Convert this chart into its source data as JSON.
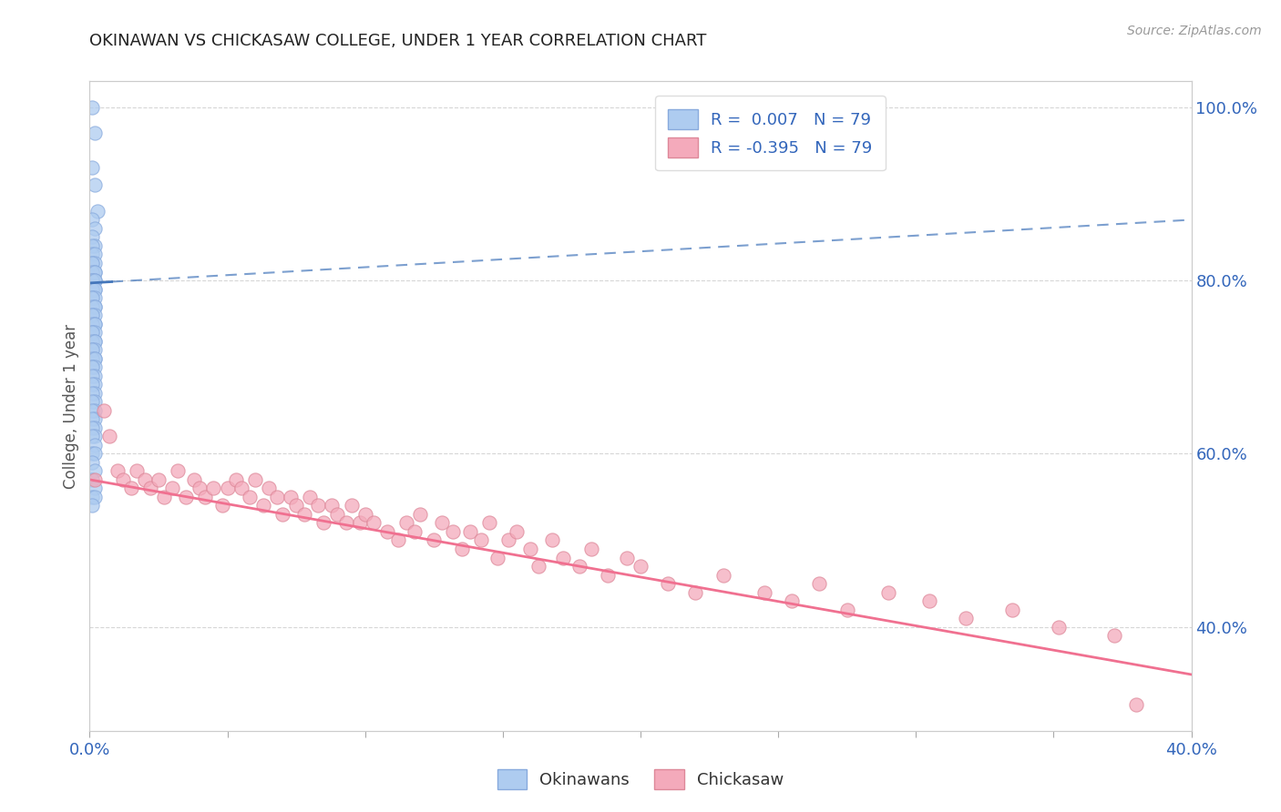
{
  "title": "OKINAWAN VS CHICKASAW COLLEGE, UNDER 1 YEAR CORRELATION CHART",
  "source_text": "Source: ZipAtlas.com",
  "ylabel": "College, Under 1 year",
  "x_min": 0.0,
  "x_max": 0.4,
  "y_min": 0.28,
  "y_max": 1.03,
  "right_y_ticks": [
    0.4,
    0.6,
    0.8,
    1.0
  ],
  "right_y_labels": [
    "40.0%",
    "60.0%",
    "80.0%",
    "100.0%"
  ],
  "x_ticks": [
    0.0,
    0.05,
    0.1,
    0.15,
    0.2,
    0.25,
    0.3,
    0.35,
    0.4
  ],
  "okinawan_R": 0.007,
  "okinawan_N": 79,
  "chickasaw_R": -0.395,
  "chickasaw_N": 79,
  "okinawan_color": "#aeccf0",
  "chickasaw_color": "#f4aabb",
  "okinawan_line_color": "#4477bb",
  "chickasaw_line_color": "#f07090",
  "legend_label_okinawan": "Okinawans",
  "legend_label_chickasaw": "Chickasaw",
  "title_color": "#222222",
  "source_color": "#999999",
  "axis_color": "#3366bb",
  "background_color": "#ffffff",
  "okinawan_x": [
    0.001,
    0.002,
    0.001,
    0.002,
    0.003,
    0.001,
    0.002,
    0.001,
    0.002,
    0.001,
    0.001,
    0.002,
    0.001,
    0.002,
    0.001,
    0.002,
    0.001,
    0.002,
    0.001,
    0.002,
    0.001,
    0.002,
    0.001,
    0.002,
    0.001,
    0.002,
    0.001,
    0.002,
    0.001,
    0.002,
    0.001,
    0.002,
    0.001,
    0.002,
    0.001,
    0.002,
    0.001,
    0.002,
    0.001,
    0.002,
    0.001,
    0.002,
    0.001,
    0.002,
    0.001,
    0.002,
    0.001,
    0.002,
    0.001,
    0.002,
    0.001,
    0.002,
    0.001,
    0.002,
    0.001,
    0.002,
    0.001,
    0.002,
    0.001,
    0.002,
    0.001,
    0.002,
    0.001,
    0.002,
    0.001,
    0.002,
    0.001,
    0.002,
    0.001,
    0.002,
    0.001,
    0.002,
    0.001,
    0.002,
    0.001,
    0.002,
    0.001,
    0.002,
    0.001
  ],
  "okinawan_y": [
    1.0,
    0.97,
    0.93,
    0.91,
    0.88,
    0.87,
    0.86,
    0.85,
    0.84,
    0.84,
    0.83,
    0.83,
    0.82,
    0.82,
    0.82,
    0.81,
    0.81,
    0.81,
    0.8,
    0.8,
    0.8,
    0.8,
    0.79,
    0.79,
    0.79,
    0.79,
    0.78,
    0.78,
    0.78,
    0.77,
    0.77,
    0.77,
    0.76,
    0.76,
    0.76,
    0.75,
    0.75,
    0.75,
    0.74,
    0.74,
    0.74,
    0.73,
    0.73,
    0.73,
    0.72,
    0.72,
    0.72,
    0.71,
    0.71,
    0.71,
    0.7,
    0.7,
    0.7,
    0.69,
    0.69,
    0.68,
    0.68,
    0.67,
    0.67,
    0.66,
    0.66,
    0.65,
    0.65,
    0.64,
    0.64,
    0.63,
    0.63,
    0.62,
    0.62,
    0.61,
    0.6,
    0.6,
    0.59,
    0.58,
    0.57,
    0.56,
    0.55,
    0.55,
    0.54
  ],
  "chickasaw_x": [
    0.002,
    0.005,
    0.007,
    0.01,
    0.012,
    0.015,
    0.017,
    0.02,
    0.022,
    0.025,
    0.027,
    0.03,
    0.032,
    0.035,
    0.038,
    0.04,
    0.042,
    0.045,
    0.048,
    0.05,
    0.053,
    0.055,
    0.058,
    0.06,
    0.063,
    0.065,
    0.068,
    0.07,
    0.073,
    0.075,
    0.078,
    0.08,
    0.083,
    0.085,
    0.088,
    0.09,
    0.093,
    0.095,
    0.098,
    0.1,
    0.103,
    0.108,
    0.112,
    0.115,
    0.118,
    0.12,
    0.125,
    0.128,
    0.132,
    0.135,
    0.138,
    0.142,
    0.145,
    0.148,
    0.152,
    0.155,
    0.16,
    0.163,
    0.168,
    0.172,
    0.178,
    0.182,
    0.188,
    0.195,
    0.2,
    0.21,
    0.22,
    0.23,
    0.245,
    0.255,
    0.265,
    0.275,
    0.29,
    0.305,
    0.318,
    0.335,
    0.352,
    0.372,
    0.38
  ],
  "chickasaw_y": [
    0.57,
    0.65,
    0.62,
    0.58,
    0.57,
    0.56,
    0.58,
    0.57,
    0.56,
    0.57,
    0.55,
    0.56,
    0.58,
    0.55,
    0.57,
    0.56,
    0.55,
    0.56,
    0.54,
    0.56,
    0.57,
    0.56,
    0.55,
    0.57,
    0.54,
    0.56,
    0.55,
    0.53,
    0.55,
    0.54,
    0.53,
    0.55,
    0.54,
    0.52,
    0.54,
    0.53,
    0.52,
    0.54,
    0.52,
    0.53,
    0.52,
    0.51,
    0.5,
    0.52,
    0.51,
    0.53,
    0.5,
    0.52,
    0.51,
    0.49,
    0.51,
    0.5,
    0.52,
    0.48,
    0.5,
    0.51,
    0.49,
    0.47,
    0.5,
    0.48,
    0.47,
    0.49,
    0.46,
    0.48,
    0.47,
    0.45,
    0.44,
    0.46,
    0.44,
    0.43,
    0.45,
    0.42,
    0.44,
    0.43,
    0.41,
    0.42,
    0.4,
    0.39,
    0.31
  ],
  "okinawan_trend_x0": 0.0,
  "okinawan_trend_y0": 0.797,
  "okinawan_trend_x1": 0.4,
  "okinawan_trend_y1": 0.87,
  "chickasaw_trend_x0": 0.0,
  "chickasaw_trend_y0": 0.57,
  "chickasaw_trend_x1": 0.4,
  "chickasaw_trend_y1": 0.345
}
